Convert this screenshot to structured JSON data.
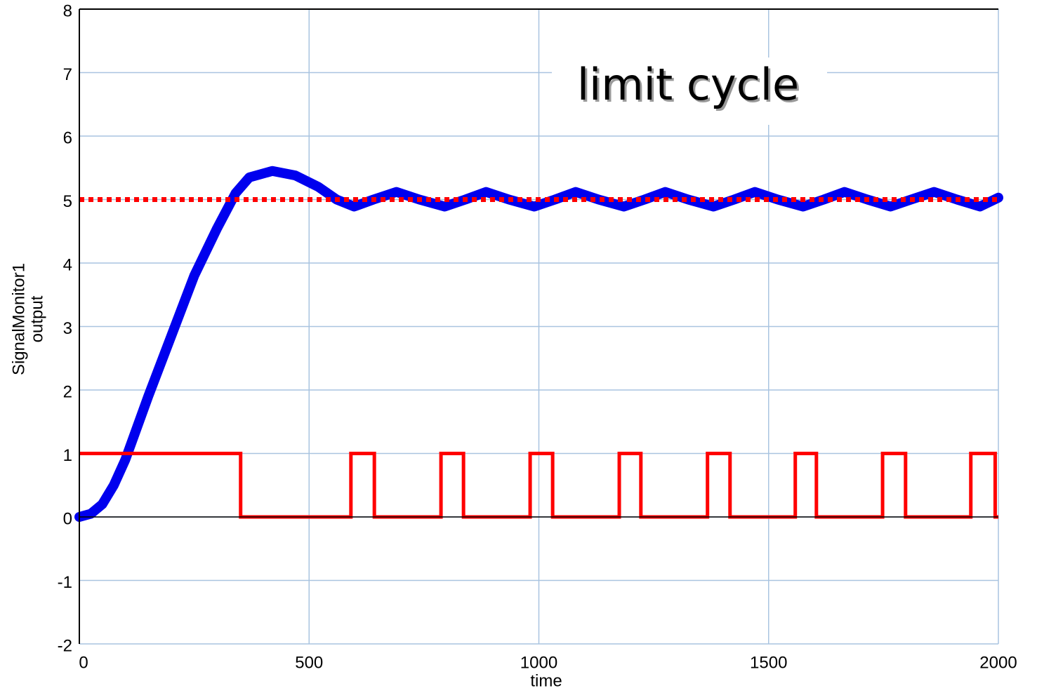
{
  "chart_data": {
    "type": "line",
    "annotation": "limit cycle",
    "xlabel": "time",
    "ylabel": [
      "SignalMonitor1",
      "output"
    ],
    "xlim": [
      0,
      2000
    ],
    "xticks": [
      0,
      500,
      1000,
      1500,
      2000
    ],
    "ylim": [
      -2,
      8
    ],
    "yticks": [
      -2,
      -1,
      0,
      1,
      2,
      3,
      4,
      5,
      6,
      7,
      8
    ],
    "grid": true,
    "grid_color": "#a9c4e0",
    "series": [
      {
        "color": "#0000ee",
        "style": "thick",
        "x": [
          0,
          25,
          50,
          75,
          100,
          150,
          200,
          250,
          300,
          340,
          370,
          420,
          470,
          520,
          560,
          598,
          640,
          690,
          740,
          795,
          840,
          885,
          935,
          990,
          1035,
          1080,
          1130,
          1185,
          1230,
          1275,
          1325,
          1380,
          1425,
          1470,
          1520,
          1575,
          1620,
          1665,
          1715,
          1765,
          1810,
          1860,
          1910,
          1960,
          2000
        ],
        "values": [
          0,
          0.05,
          0.2,
          0.5,
          0.9,
          1.9,
          2.85,
          3.8,
          4.55,
          5.1,
          5.35,
          5.45,
          5.38,
          5.2,
          5.0,
          4.89,
          5.0,
          5.12,
          5.0,
          4.89,
          5.0,
          5.12,
          5.0,
          4.89,
          5.0,
          5.12,
          5.0,
          4.89,
          5.0,
          5.12,
          5.0,
          4.89,
          5.0,
          5.12,
          5.0,
          4.89,
          5.0,
          5.12,
          5.0,
          4.89,
          5.0,
          5.12,
          5.0,
          4.89,
          5.03
        ]
      },
      {
        "color": "#ff0000",
        "style": "dotted",
        "x": [
          0,
          2000
        ],
        "values": [
          5,
          5
        ]
      },
      {
        "color": "#ff0000",
        "style": "solid",
        "x": [
          0,
          351,
          351,
          591,
          591,
          642,
          642,
          787,
          787,
          836,
          836,
          981,
          981,
          1030,
          1030,
          1175,
          1175,
          1222,
          1222,
          1367,
          1367,
          1416,
          1416,
          1558,
          1558,
          1604,
          1604,
          1748,
          1748,
          1798,
          1798,
          1940,
          1940,
          1993,
          1993,
          2000
        ],
        "values": [
          1,
          1,
          0,
          0,
          1,
          1,
          0,
          0,
          1,
          1,
          0,
          0,
          1,
          1,
          0,
          0,
          1,
          1,
          0,
          0,
          1,
          1,
          0,
          0,
          1,
          1,
          0,
          0,
          1,
          1,
          0,
          0,
          1,
          1,
          0,
          0
        ]
      }
    ]
  }
}
